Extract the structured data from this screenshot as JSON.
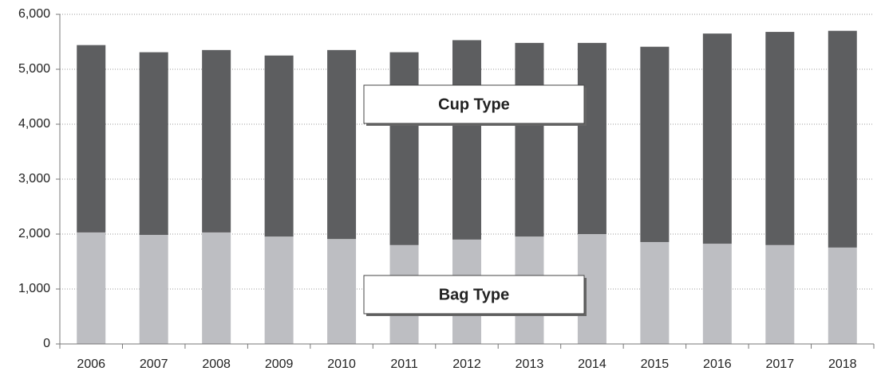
{
  "chart_data": {
    "type": "stacked-bar",
    "categories": [
      "2006",
      "2007",
      "2008",
      "2009",
      "2010",
      "2011",
      "2012",
      "2013",
      "2014",
      "2015",
      "2016",
      "2017",
      "2018"
    ],
    "series": [
      {
        "name": "Bag Type",
        "color": "#bdbec2",
        "values": [
          2030,
          1985,
          2030,
          1955,
          1910,
          1800,
          1900,
          1955,
          2000,
          1855,
          1825,
          1800,
          1755
        ]
      },
      {
        "name": "Cup Type",
        "color": "#5d5e60",
        "values": [
          3410,
          3325,
          3320,
          3295,
          3440,
          3510,
          3630,
          3525,
          3480,
          3555,
          3825,
          3880,
          3945
        ]
      }
    ],
    "ylim": [
      0,
      6000
    ],
    "yticks": [
      0,
      {
        "value": 1000,
        "label": "1,000"
      },
      {
        "value": 2000,
        "label": "2,000"
      },
      {
        "value": 3000,
        "label": "3,000"
      },
      {
        "value": 4000,
        "label": "4,000"
      },
      {
        "value": 5000,
        "label": "5,000"
      },
      {
        "value": 6000,
        "label": "6,000"
      }
    ],
    "grid": true
  }
}
